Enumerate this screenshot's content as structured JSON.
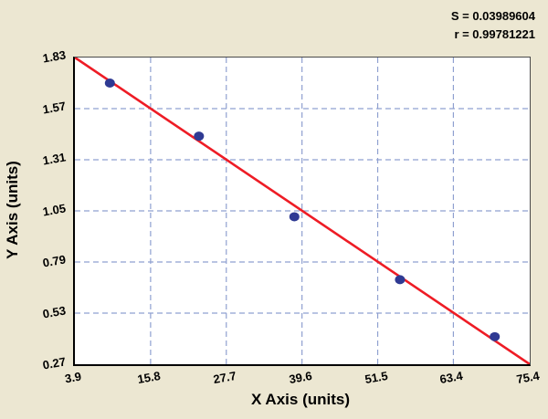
{
  "chart_data": {
    "type": "scatter",
    "title": "",
    "xlabel": "X Axis (units)",
    "ylabel": "Y Axis (units)",
    "annotations": [
      "S = 0.03989604",
      "r = 0.99781221"
    ],
    "xlim": [
      3.9,
      75.4
    ],
    "ylim": [
      0.27,
      1.83
    ],
    "x_ticks": [
      "3.9",
      "15.8",
      "27.7",
      "39.6",
      "51.5",
      "63.4",
      "75.4"
    ],
    "y_ticks": [
      "1.83",
      "1.57",
      "1.31",
      "1.05",
      "0.79",
      "0.53",
      "0.27"
    ],
    "points": [
      {
        "x": 9.4,
        "y": 1.7
      },
      {
        "x": 23.4,
        "y": 1.43
      },
      {
        "x": 38.4,
        "y": 1.02
      },
      {
        "x": 55.0,
        "y": 0.7
      },
      {
        "x": 69.9,
        "y": 0.41
      }
    ],
    "fit_line": {
      "x": [
        3.9,
        75.4
      ],
      "y": [
        1.83,
        0.27
      ]
    },
    "grid": true,
    "legend": "none",
    "colors": {
      "background": "#ece7d2",
      "plot_background": "#ffffff",
      "gridline": "#8fa0d0",
      "point": "#2f3a93",
      "line": "#ee1c25",
      "text": "#000000"
    }
  }
}
